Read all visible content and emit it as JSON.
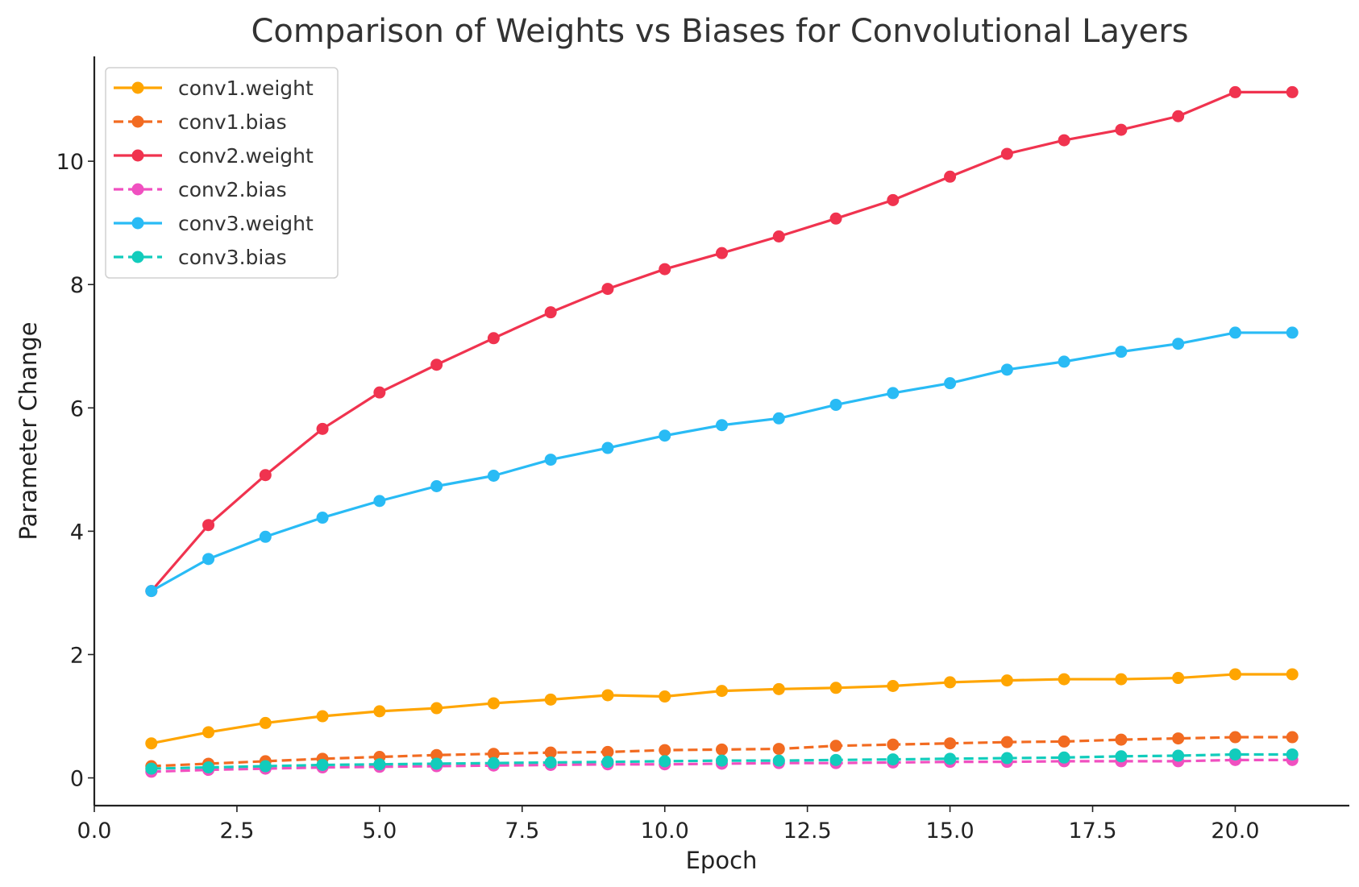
{
  "chart_data": {
    "type": "line",
    "title": "Comparison of Weights vs Biases for Convolutional Layers",
    "xlabel": "Epoch",
    "ylabel": "Parameter Change",
    "xlim": [
      0,
      22
    ],
    "ylim": [
      -0.45,
      11.7
    ],
    "xticks": [
      0.0,
      2.5,
      5.0,
      7.5,
      10.0,
      12.5,
      15.0,
      17.5,
      20.0
    ],
    "xtick_labels": [
      "0.0",
      "2.5",
      "5.0",
      "7.5",
      "10.0",
      "12.5",
      "15.0",
      "17.5",
      "20.0"
    ],
    "yticks": [
      0,
      2,
      4,
      6,
      8,
      10
    ],
    "ytick_labels": [
      "0",
      "2",
      "4",
      "6",
      "8",
      "10"
    ],
    "grid": false,
    "legend_position": "top-left",
    "x": [
      1,
      2,
      3,
      4,
      5,
      6,
      7,
      8,
      9,
      10,
      11,
      12,
      13,
      14,
      15,
      16,
      17,
      18,
      19,
      20,
      21
    ],
    "series": [
      {
        "name": "conv1.weight",
        "color": "#FFA500",
        "dashed": false,
        "values": [
          0.56,
          0.74,
          0.89,
          1.0,
          1.08,
          1.13,
          1.21,
          1.27,
          1.34,
          1.32,
          1.41,
          1.44,
          1.46,
          1.49,
          1.55,
          1.58,
          1.6,
          1.6,
          1.62,
          1.68,
          1.68
        ]
      },
      {
        "name": "conv1.bias",
        "color": "#F26B21",
        "dashed": true,
        "values": [
          0.19,
          0.23,
          0.27,
          0.31,
          0.34,
          0.37,
          0.39,
          0.41,
          0.42,
          0.45,
          0.46,
          0.47,
          0.52,
          0.54,
          0.56,
          0.58,
          0.59,
          0.62,
          0.64,
          0.66,
          0.66
        ]
      },
      {
        "name": "conv2.weight",
        "color": "#F0334F",
        "dashed": false,
        "values": [
          3.03,
          4.1,
          4.91,
          5.66,
          6.25,
          6.7,
          7.13,
          7.55,
          7.93,
          8.25,
          8.51,
          8.78,
          9.07,
          9.37,
          9.75,
          10.12,
          10.34,
          10.51,
          10.73,
          11.12,
          11.12
        ]
      },
      {
        "name": "conv2.bias",
        "color": "#F050C0",
        "dashed": true,
        "values": [
          0.1,
          0.13,
          0.15,
          0.17,
          0.18,
          0.19,
          0.2,
          0.21,
          0.22,
          0.22,
          0.23,
          0.24,
          0.24,
          0.25,
          0.26,
          0.26,
          0.27,
          0.27,
          0.27,
          0.29,
          0.29
        ]
      },
      {
        "name": "conv3.weight",
        "color": "#29BBF5",
        "dashed": false,
        "values": [
          3.03,
          3.55,
          3.91,
          4.22,
          4.49,
          4.73,
          4.9,
          5.16,
          5.35,
          5.55,
          5.72,
          5.83,
          6.05,
          6.24,
          6.4,
          6.62,
          6.75,
          6.91,
          7.04,
          7.22,
          7.22
        ]
      },
      {
        "name": "conv3.bias",
        "color": "#12CCBC",
        "dashed": true,
        "values": [
          0.15,
          0.17,
          0.19,
          0.21,
          0.22,
          0.23,
          0.24,
          0.25,
          0.26,
          0.27,
          0.28,
          0.28,
          0.29,
          0.3,
          0.31,
          0.32,
          0.33,
          0.35,
          0.36,
          0.38,
          0.38
        ]
      }
    ]
  }
}
